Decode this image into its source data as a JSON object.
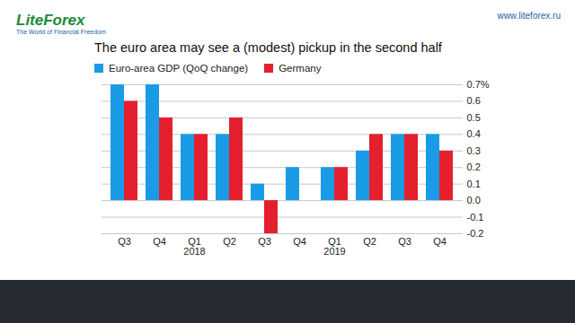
{
  "page": {
    "logo": "LiteForex",
    "logo_tagline": "The World of Financial Freedom",
    "url": "www.liteforex.ru"
  },
  "chart_data": {
    "type": "bar",
    "title": "The euro area may see a (modest) pickup in the second half",
    "categories": [
      "Q3",
      "Q4",
      "Q1\n2018",
      "Q2",
      "Q3",
      "Q4",
      "Q1\n2019",
      "Q2",
      "Q3",
      "Q4"
    ],
    "series": [
      {
        "name": "Euro-area GDP (QoQ change)",
        "color": "#1a9be6",
        "values": [
          0.7,
          0.7,
          0.4,
          0.4,
          0.1,
          0.2,
          0.2,
          0.3,
          0.4,
          0.4
        ]
      },
      {
        "name": "Germany",
        "color": "#e4202e",
        "values": [
          0.6,
          0.5,
          0.4,
          0.5,
          -0.2,
          0.0,
          0.2,
          0.4,
          0.4,
          0.3
        ]
      }
    ],
    "ylim": [
      -0.2,
      0.7
    ],
    "yticks": [
      -0.2,
      -0.1,
      {
        "value": 0,
        "label": "0.0"
      },
      0.1,
      0.2,
      0.3,
      0.4,
      0.5,
      0.6,
      {
        "value": 0.7,
        "label": "0.7%"
      }
    ],
    "grid": true,
    "legend": "top"
  }
}
